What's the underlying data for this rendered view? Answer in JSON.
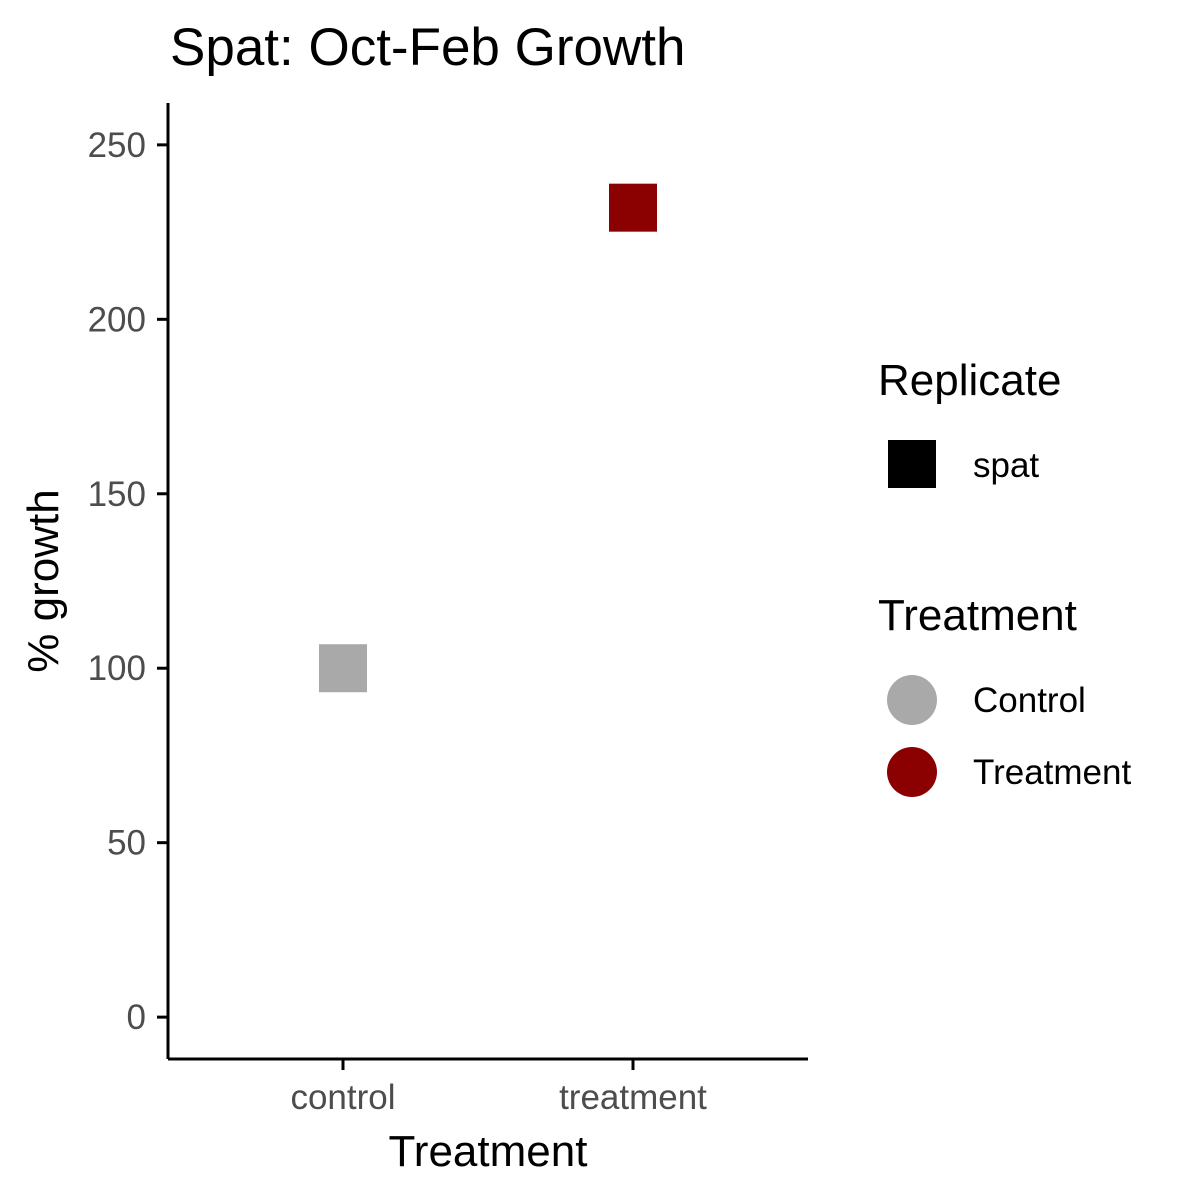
{
  "chart_data": {
    "type": "scatter",
    "title": "Spat: Oct-Feb Growth",
    "xlabel": "Treatment",
    "ylabel": "% growth",
    "categories": [
      "control",
      "treatment"
    ],
    "ylim": [
      -12,
      262
    ],
    "yticks": [
      0,
      50,
      100,
      150,
      200,
      250
    ],
    "grid": false,
    "series": [
      {
        "name": "Control",
        "category": "control",
        "value": 100,
        "color": "#A9A9A9",
        "shape": "square"
      },
      {
        "name": "Treatment",
        "category": "treatment",
        "value": 232,
        "color": "#8B0000",
        "shape": "square"
      }
    ],
    "legend": {
      "position": "right",
      "groups": [
        {
          "title": "Replicate",
          "items": [
            {
              "label": "spat",
              "shape": "square",
              "color": "#000000"
            }
          ]
        },
        {
          "title": "Treatment",
          "items": [
            {
              "label": "Control",
              "shape": "circle",
              "color": "#A9A9A9"
            },
            {
              "label": "Treatment",
              "shape": "circle",
              "color": "#8B0000"
            }
          ]
        }
      ]
    }
  }
}
